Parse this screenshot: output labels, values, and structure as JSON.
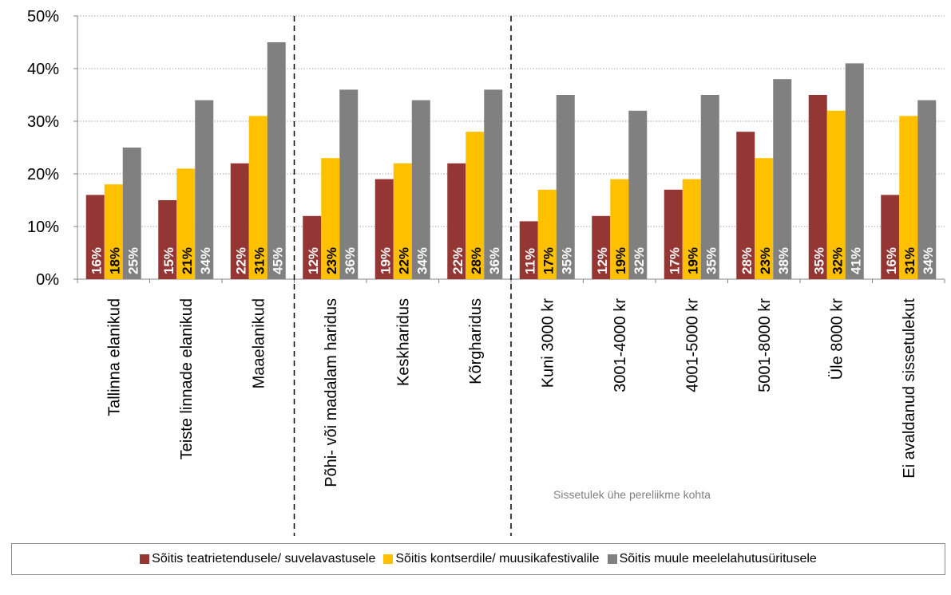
{
  "colors": {
    "teater": "#943634",
    "kontsert": "#ffc000",
    "muu": "#808080",
    "grid": "#a6a6a6",
    "divider": "#000000"
  },
  "annotation": "Sissetulek ühe pereliikme kohta",
  "chart_data": {
    "type": "bar",
    "categories": [
      "Tallinna elanikud",
      "Teiste linnade elanikud",
      "Maaelanikud",
      "Põhi- või madalam haridus",
      "Keskharidus",
      "Kõrgharidus",
      "Kuni 3000 kr",
      "3001-4000 kr",
      "4001-5000 kr",
      "5001-8000 kr",
      "Üle 8000 kr",
      "Ei avaldanud sissetulekut"
    ],
    "series": [
      {
        "name": "Sõitis teatrietendusele/ suvelavastusele",
        "color": "#943634",
        "values": [
          16,
          15,
          22,
          12,
          19,
          22,
          11,
          12,
          17,
          28,
          35,
          16
        ]
      },
      {
        "name": "Sõitis kontserdile/ muusikafestivalile",
        "color": "#ffc000",
        "values": [
          18,
          21,
          31,
          23,
          22,
          28,
          17,
          19,
          19,
          23,
          32,
          31
        ]
      },
      {
        "name": "Sõitis muule meelelahutusüritusele",
        "color": "#808080",
        "values": [
          25,
          34,
          45,
          36,
          34,
          36,
          35,
          32,
          35,
          38,
          41,
          34
        ]
      }
    ],
    "ylim": [
      0,
      50
    ],
    "yticks": [
      "0%",
      "10%",
      "20%",
      "30%",
      "40%",
      "50%"
    ],
    "value_suffix": "%",
    "group_dividers_after": [
      3,
      6
    ],
    "grid": true,
    "legend_position": "bottom"
  }
}
